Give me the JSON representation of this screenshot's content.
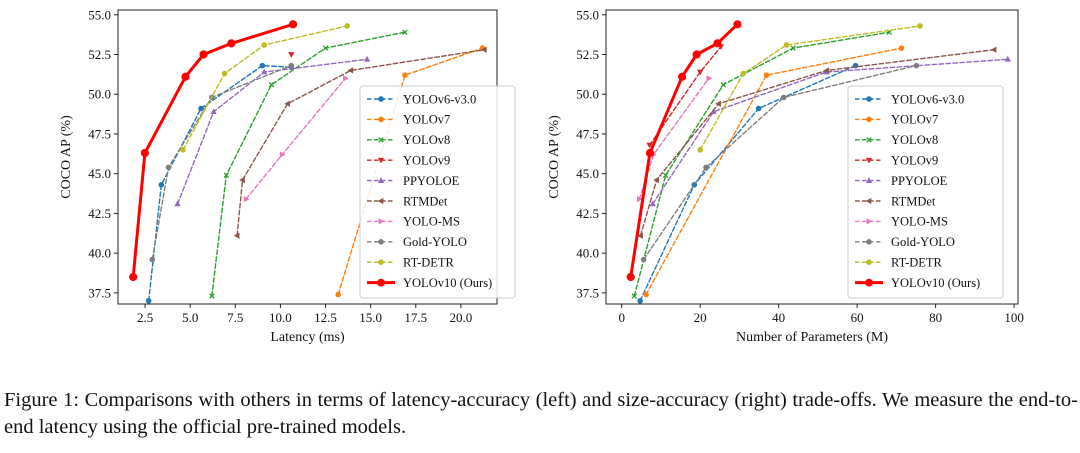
{
  "caption": "Figure 1: Comparisons with others in terms of latency-accuracy (left) and size-accuracy (right) trade-offs. We measure the end-to-end latency using the official pre-trained models.",
  "chart_data": [
    {
      "type": "line",
      "title": "",
      "xlabel": "Latency (ms)",
      "ylabel": "COCO AP (%)",
      "xlim": [
        1.0,
        22.0
      ],
      "ylim": [
        36.8,
        55.3
      ],
      "xticks": [
        "2.5",
        "5.0",
        "7.5",
        "10.0",
        "12.5",
        "15.0",
        "17.5",
        "20.0"
      ],
      "yticks": [
        "37.5",
        "40.0",
        "42.5",
        "45.0",
        "47.5",
        "50.0",
        "52.5",
        "55.0"
      ],
      "legend": "bottom-right",
      "series": [
        {
          "name": "YOLOv6-v3.0",
          "color": "#1f77b4",
          "marker": "dot",
          "dashed": true,
          "x": [
            2.7,
            3.4,
            5.6,
            9.0,
            10.6
          ],
          "y": [
            37.0,
            44.3,
            49.1,
            51.8,
            51.7
          ]
        },
        {
          "name": "YOLOv7",
          "color": "#ff7f0e",
          "marker": "dot",
          "dashed": true,
          "x": [
            13.2,
            16.9,
            21.2
          ],
          "y": [
            37.4,
            51.2,
            52.9
          ]
        },
        {
          "name": "YOLOv8",
          "color": "#2ca02c",
          "marker": "x",
          "dashed": true,
          "x": [
            6.2,
            7.0,
            9.5,
            12.5,
            16.9
          ],
          "y": [
            37.3,
            44.9,
            50.6,
            52.9,
            53.9
          ]
        },
        {
          "name": "YOLOv9",
          "color": "#d62728",
          "marker": "tri-down",
          "dashed": true,
          "x": [
            10.6
          ],
          "y": [
            52.5
          ]
        },
        {
          "name": "PPYOLOE",
          "color": "#9467bd",
          "marker": "tri-up",
          "dashed": true,
          "x": [
            4.3,
            6.3,
            9.1,
            14.8
          ],
          "y": [
            43.1,
            48.9,
            51.4,
            52.2
          ]
        },
        {
          "name": "RTMDet",
          "color": "#8c564b",
          "marker": "tri-left",
          "dashed": true,
          "x": [
            7.6,
            7.9,
            10.4,
            13.9,
            21.3
          ],
          "y": [
            41.1,
            44.6,
            49.4,
            51.5,
            52.8
          ]
        },
        {
          "name": "YOLO-MS",
          "color": "#e377c2",
          "marker": "tri-right",
          "dashed": true,
          "x": [
            8.1,
            10.1,
            13.6
          ],
          "y": [
            43.4,
            46.2,
            51.0
          ]
        },
        {
          "name": "Gold-YOLO",
          "color": "#7f7f7f",
          "marker": "dot",
          "dashed": true,
          "x": [
            2.9,
            3.8,
            6.2,
            10.6
          ],
          "y": [
            39.6,
            45.4,
            49.8,
            51.8
          ]
        },
        {
          "name": "RT-DETR",
          "color": "#bcbd22",
          "marker": "dot",
          "dashed": true,
          "x": [
            4.6,
            6.9,
            9.1,
            13.7
          ],
          "y": [
            46.5,
            51.3,
            53.1,
            54.3
          ]
        },
        {
          "name": "YOLOv10 (Ours)",
          "color": "#ff0000",
          "marker": "dot",
          "dashed": false,
          "x": [
            1.84,
            2.49,
            4.74,
            5.74,
            7.28,
            10.7
          ],
          "y": [
            38.5,
            46.3,
            51.1,
            52.5,
            53.2,
            54.4
          ]
        }
      ]
    },
    {
      "type": "line",
      "title": "",
      "xlabel": "Number of Parameters (M)",
      "ylabel": "COCO AP (%)",
      "xlim": [
        -4.0,
        101.0
      ],
      "ylim": [
        36.8,
        55.3
      ],
      "xticks": [
        "0",
        "20",
        "40",
        "60",
        "80",
        "100"
      ],
      "yticks": [
        "37.5",
        "40.0",
        "42.5",
        "45.0",
        "47.5",
        "50.0",
        "52.5",
        "55.0"
      ],
      "legend": "bottom-right",
      "series": [
        {
          "name": "YOLOv6-v3.0",
          "color": "#1f77b4",
          "marker": "dot",
          "dashed": true,
          "x": [
            4.7,
            18.5,
            34.9,
            59.6
          ],
          "y": [
            37.0,
            44.3,
            49.1,
            51.8
          ]
        },
        {
          "name": "YOLOv7",
          "color": "#ff7f0e",
          "marker": "dot",
          "dashed": true,
          "x": [
            6.2,
            36.9,
            71.3
          ],
          "y": [
            37.4,
            51.2,
            52.9
          ]
        },
        {
          "name": "YOLOv8",
          "color": "#2ca02c",
          "marker": "x",
          "dashed": true,
          "x": [
            3.2,
            11.2,
            25.9,
            43.7,
            68.2
          ],
          "y": [
            37.3,
            44.9,
            50.6,
            52.9,
            53.9
          ]
        },
        {
          "name": "YOLOv9",
          "color": "#d62728",
          "marker": "tri-down",
          "dashed": true,
          "x": [
            7.1,
            20.0,
            25.3
          ],
          "y": [
            46.8,
            51.4,
            53.0
          ]
        },
        {
          "name": "PPYOLOE",
          "color": "#9467bd",
          "marker": "tri-up",
          "dashed": true,
          "x": [
            7.9,
            23.4,
            52.2,
            98.4
          ],
          "y": [
            43.1,
            48.9,
            51.4,
            52.2
          ]
        },
        {
          "name": "RTMDet",
          "color": "#8c564b",
          "marker": "tri-left",
          "dashed": true,
          "x": [
            4.8,
            8.9,
            24.7,
            52.3,
            94.9
          ],
          "y": [
            41.1,
            44.6,
            49.4,
            51.5,
            52.8
          ]
        },
        {
          "name": "YOLO-MS",
          "color": "#e377c2",
          "marker": "tri-right",
          "dashed": true,
          "x": [
            4.5,
            8.1,
            22.2
          ],
          "y": [
            43.4,
            46.2,
            51.0
          ]
        },
        {
          "name": "Gold-YOLO",
          "color": "#7f7f7f",
          "marker": "dot",
          "dashed": true,
          "x": [
            5.6,
            21.5,
            41.3,
            75.1
          ],
          "y": [
            39.6,
            45.4,
            49.8,
            51.8
          ]
        },
        {
          "name": "RT-DETR",
          "color": "#bcbd22",
          "marker": "dot",
          "dashed": true,
          "x": [
            20.0,
            31.0,
            42.0,
            76.0
          ],
          "y": [
            46.5,
            51.3,
            53.1,
            54.3
          ]
        },
        {
          "name": "YOLOv10 (Ours)",
          "color": "#ff0000",
          "marker": "dot",
          "dashed": false,
          "x": [
            2.3,
            7.2,
            15.4,
            19.1,
            24.4,
            29.5
          ],
          "y": [
            38.5,
            46.3,
            51.1,
            52.5,
            53.2,
            54.4
          ]
        }
      ]
    }
  ]
}
